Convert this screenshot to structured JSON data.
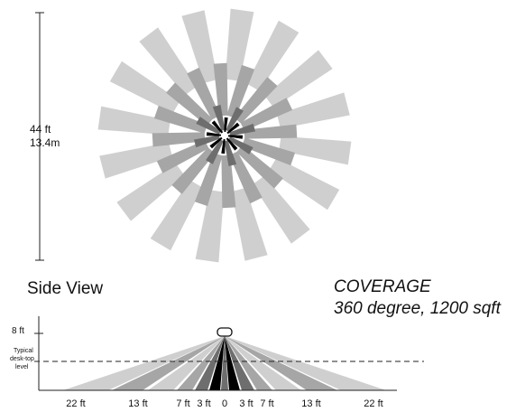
{
  "top_view": {
    "height_label_ft": "44 ft",
    "height_label_m": "13.4m"
  },
  "side_view": {
    "title": "Side View",
    "mount_height": "8 ft",
    "desk_label_line1": "Typical",
    "desk_label_line2": "desk-top",
    "desk_label_line3": "level",
    "distance_labels_left": [
      "22 ft",
      "13 ft",
      "7 ft",
      "3 ft"
    ],
    "center_label": "0",
    "distance_labels_right": [
      "3 ft",
      "7 ft",
      "13 ft",
      "22 ft"
    ]
  },
  "coverage": {
    "heading": "COVERAGE",
    "detail": "360 degree, 1200 sqft"
  },
  "colors": {
    "outer_zone": "#cfcfcf",
    "middle_zone": "#a6a6a6",
    "inner_zone": "#6e6e6e",
    "core_zone": "#000000"
  }
}
